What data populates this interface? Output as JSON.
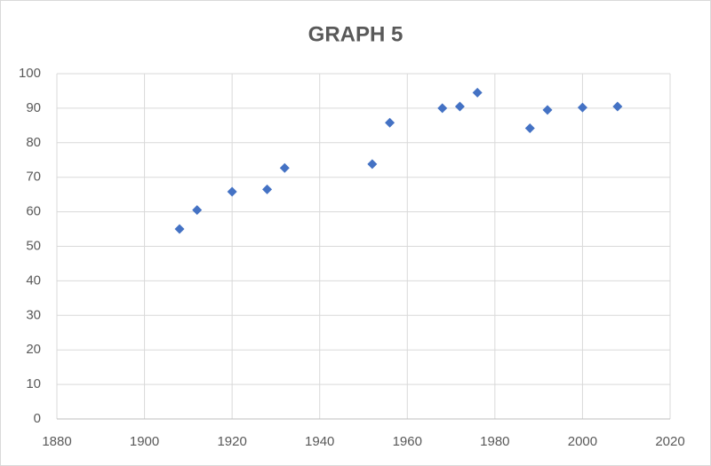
{
  "chart_data": {
    "type": "scatter",
    "title": "GRAPH 5",
    "x": [
      1908,
      1912,
      1920,
      1928,
      1932,
      1952,
      1956,
      1968,
      1972,
      1976,
      1988,
      1992,
      2000,
      2008
    ],
    "values": [
      55,
      60.5,
      65.8,
      66.5,
      72.7,
      73.8,
      85.8,
      90,
      90.5,
      94.5,
      84.2,
      89.5,
      90.2,
      90.5
    ],
    "color": "#4472c4",
    "xlim": [
      1880,
      2020
    ],
    "xticks": [
      1880,
      1900,
      1920,
      1940,
      1960,
      1980,
      2000,
      2020
    ],
    "ylim": [
      0,
      100
    ],
    "yticks": [
      0,
      10,
      20,
      30,
      40,
      50,
      60,
      70,
      80,
      90,
      100
    ],
    "grid": true
  }
}
